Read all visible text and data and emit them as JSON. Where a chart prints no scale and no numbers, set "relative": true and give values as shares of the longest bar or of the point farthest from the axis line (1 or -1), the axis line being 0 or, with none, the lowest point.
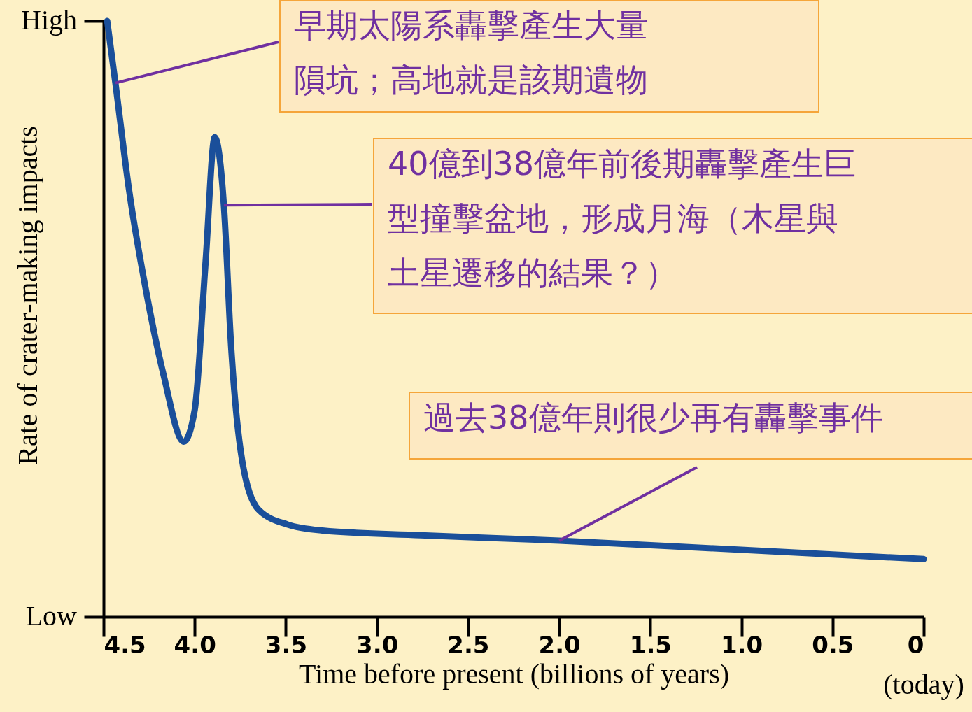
{
  "chart_data": {
    "type": "line",
    "xlabel": "Time before present (billions of years)",
    "ylabel": "Rate of crater-making impacts",
    "x": [
      4.48,
      4.435,
      4.36,
      4.26,
      4.17,
      4.06,
      4.0,
      3.94,
      3.89,
      3.84,
      3.8,
      3.74,
      3.65,
      3.49,
      3.3,
      2.76,
      2.0,
      1.15,
      0
    ],
    "relative": true,
    "series": [
      {
        "color": "#1a4f9a",
        "values": [
          1,
          0.896,
          0.716,
          0.536,
          0.405,
          0.294,
          0.347,
          0.597,
          0.805,
          0.691,
          0.453,
          0.263,
          0.18,
          0.155,
          0.145,
          0.137,
          0.128,
          0.115,
          0.097
        ]
      }
    ],
    "xlim": [
      4.5,
      0
    ],
    "xticks": [
      4.5,
      {
        "value": 4,
        "label": "4.0"
      },
      3.5,
      {
        "value": 3,
        "label": "3.0"
      },
      2.5,
      {
        "value": 2,
        "label": "2.0"
      },
      1.5,
      {
        "value": 1,
        "label": "1.0"
      },
      0.5,
      {
        "value": 0,
        "label": "0"
      }
    ],
    "line_style": "solid",
    "annotations": [
      {
        "text": "早期太陽系轟擊產生大量隕坑；高地就是該期遺物",
        "x": 4.435,
        "y": 0.896
      },
      {
        "text": "40億到38億年前後期轟擊產生巨型撞擊盆地，形成月海（木星與土星遷移的結果？）",
        "x": 3.84,
        "y": 0.691
      },
      {
        "text": "過去38億年則很少再有轟擊事件",
        "x": 2.0,
        "y": 0.128
      },
      "High",
      "Low",
      "(today)"
    ]
  }
}
